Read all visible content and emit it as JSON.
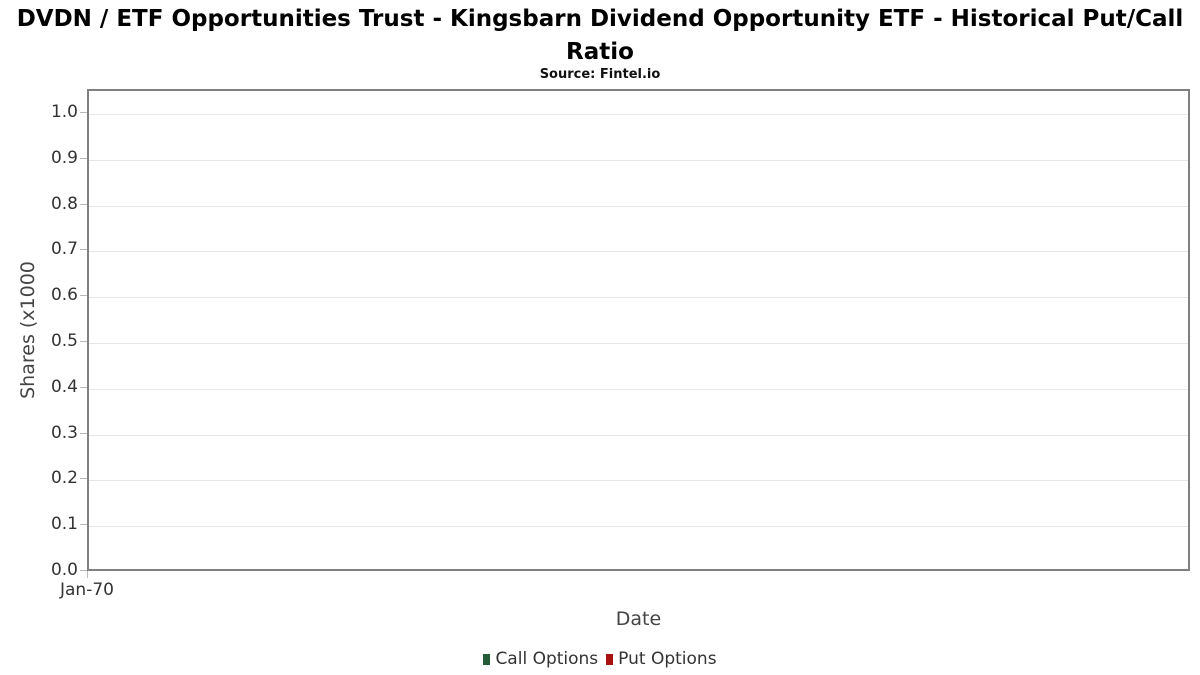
{
  "header": {
    "title": "DVDN / ETF Opportunities Trust - Kingsbarn Dividend Opportunity ETF - Historical Put/Call Ratio",
    "subtitle": "Source: Fintel.io"
  },
  "chart_data": {
    "type": "line",
    "title": "DVDN / ETF Opportunities Trust - Kingsbarn Dividend Opportunity ETF - Historical Put/Call Ratio",
    "subtitle": "Source: Fintel.io",
    "xlabel": "Date",
    "ylabel": "Shares (x1000",
    "ylim": [
      0.0,
      1.05
    ],
    "ytick_labels": [
      "0.0",
      "0.1",
      "0.2",
      "0.3",
      "0.4",
      "0.5",
      "0.6",
      "0.7",
      "0.8",
      "0.9",
      "1.0"
    ],
    "xtick_labels": [
      "Jan-70"
    ],
    "grid": "horizontal",
    "legend_position": "bottom-center",
    "series": [
      {
        "name": "Call Options",
        "color": "#265c38",
        "values": []
      },
      {
        "name": "Put Options",
        "color": "#aa1111",
        "values": []
      }
    ]
  },
  "colors": {
    "plot_border": "#808080",
    "gridline": "#e7e7e7",
    "tick_mark": "#b9b9b9",
    "tick_label": "#333333",
    "axis_label": "#444444",
    "legend_text": "#333333",
    "call_options_green": "#265c38",
    "put_options_red": "#aa1111"
  }
}
